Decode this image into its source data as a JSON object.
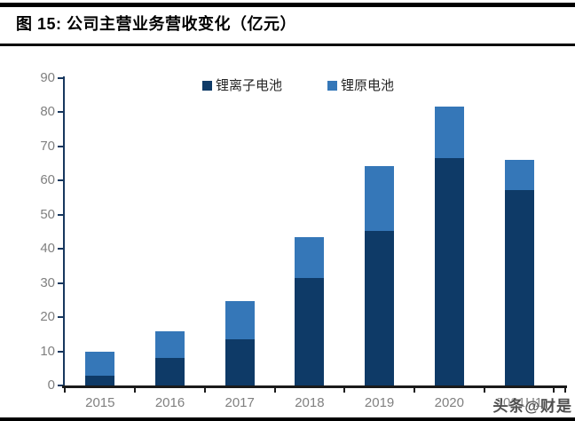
{
  "header": {
    "title": "图 15:  公司主营业务营收变化（亿元）"
  },
  "watermark": "头条@财是",
  "colors": {
    "series_li_ion": "#0E3A67",
    "series_li_primary": "#3577B8",
    "y_axis": "#17375E",
    "x_axis": "#1A1A1A",
    "tick_label": "#808080",
    "title_text": "#000000",
    "legend_text": "#262626"
  },
  "chart_data": {
    "type": "bar",
    "stacked": true,
    "title": "公司主营业务营收变化（亿元）",
    "categories": [
      "2015",
      "2016",
      "2017",
      "2018",
      "2019",
      "2020",
      "2021H1"
    ],
    "series": [
      {
        "name": "锂离子电池",
        "color": "#0E3A67",
        "values": [
          2.9,
          8.1,
          13.6,
          31.6,
          45.3,
          66.6,
          57.3
        ]
      },
      {
        "name": "锂原电池",
        "color": "#3577B8",
        "values": [
          7.0,
          7.8,
          11.0,
          11.9,
          18.9,
          15.0,
          8.7
        ]
      }
    ],
    "xlabel": "",
    "ylabel": "",
    "ylim": [
      0,
      90
    ],
    "ytick_step": 10,
    "ytick_labels": [
      "0",
      "10",
      "20",
      "30",
      "40",
      "50",
      "60",
      "70",
      "80",
      "90"
    ],
    "grid": false,
    "legend_position": "top-center"
  }
}
